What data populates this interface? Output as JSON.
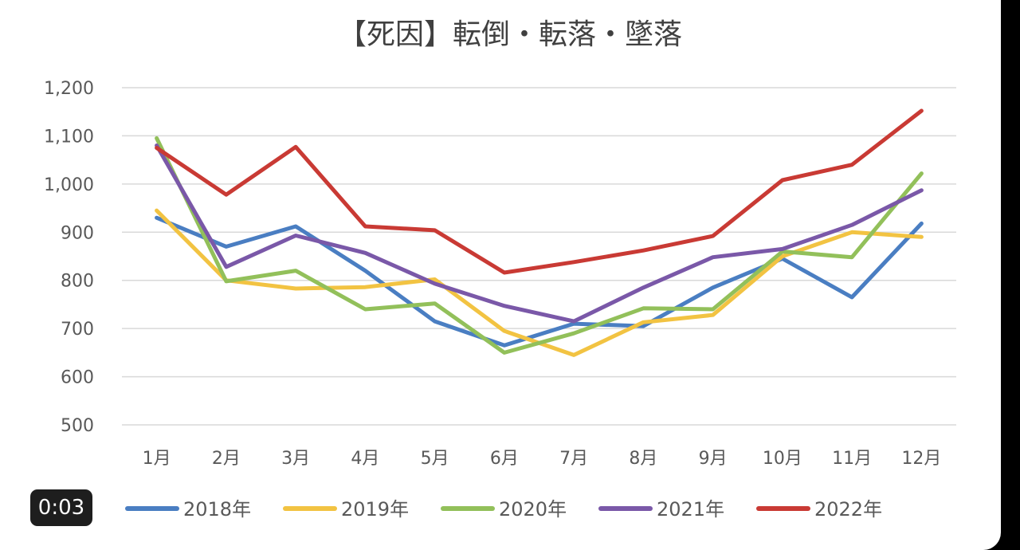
{
  "overlay": {
    "timestamp": "0:03"
  },
  "chart_data": {
    "type": "line",
    "title": "【死因】転倒・転落・墜落",
    "categories": [
      "1月",
      "2月",
      "3月",
      "4月",
      "5月",
      "6月",
      "7月",
      "8月",
      "9月",
      "10月",
      "11月",
      "12月"
    ],
    "ylim": [
      500,
      1200
    ],
    "yticks": [
      500,
      600,
      700,
      800,
      900,
      1000,
      1100,
      1200
    ],
    "ytick_labels": [
      "500",
      "600",
      "700",
      "800",
      "900",
      "1,000",
      "1,100",
      "1,200"
    ],
    "grid": true,
    "legend_position": "bottom",
    "series": [
      {
        "name": "2018年",
        "color": "#4a7ec2",
        "values": [
          930,
          870,
          912,
          820,
          715,
          665,
          710,
          705,
          785,
          845,
          765,
          918
        ]
      },
      {
        "name": "2019年",
        "color": "#f2c342",
        "values": [
          945,
          800,
          783,
          786,
          802,
          695,
          645,
          713,
          728,
          850,
          900,
          890
        ]
      },
      {
        "name": "2020年",
        "color": "#92c05a",
        "values": [
          1095,
          798,
          820,
          740,
          752,
          650,
          690,
          742,
          740,
          860,
          848,
          1022
        ]
      },
      {
        "name": "2021年",
        "color": "#7a58a8",
        "values": [
          1080,
          828,
          893,
          857,
          793,
          747,
          715,
          785,
          848,
          865,
          915,
          987
        ]
      },
      {
        "name": "2022年",
        "color": "#c93a34",
        "values": [
          1075,
          978,
          1077,
          912,
          904,
          816,
          838,
          862,
          892,
          1008,
          1040,
          1152
        ]
      }
    ]
  }
}
